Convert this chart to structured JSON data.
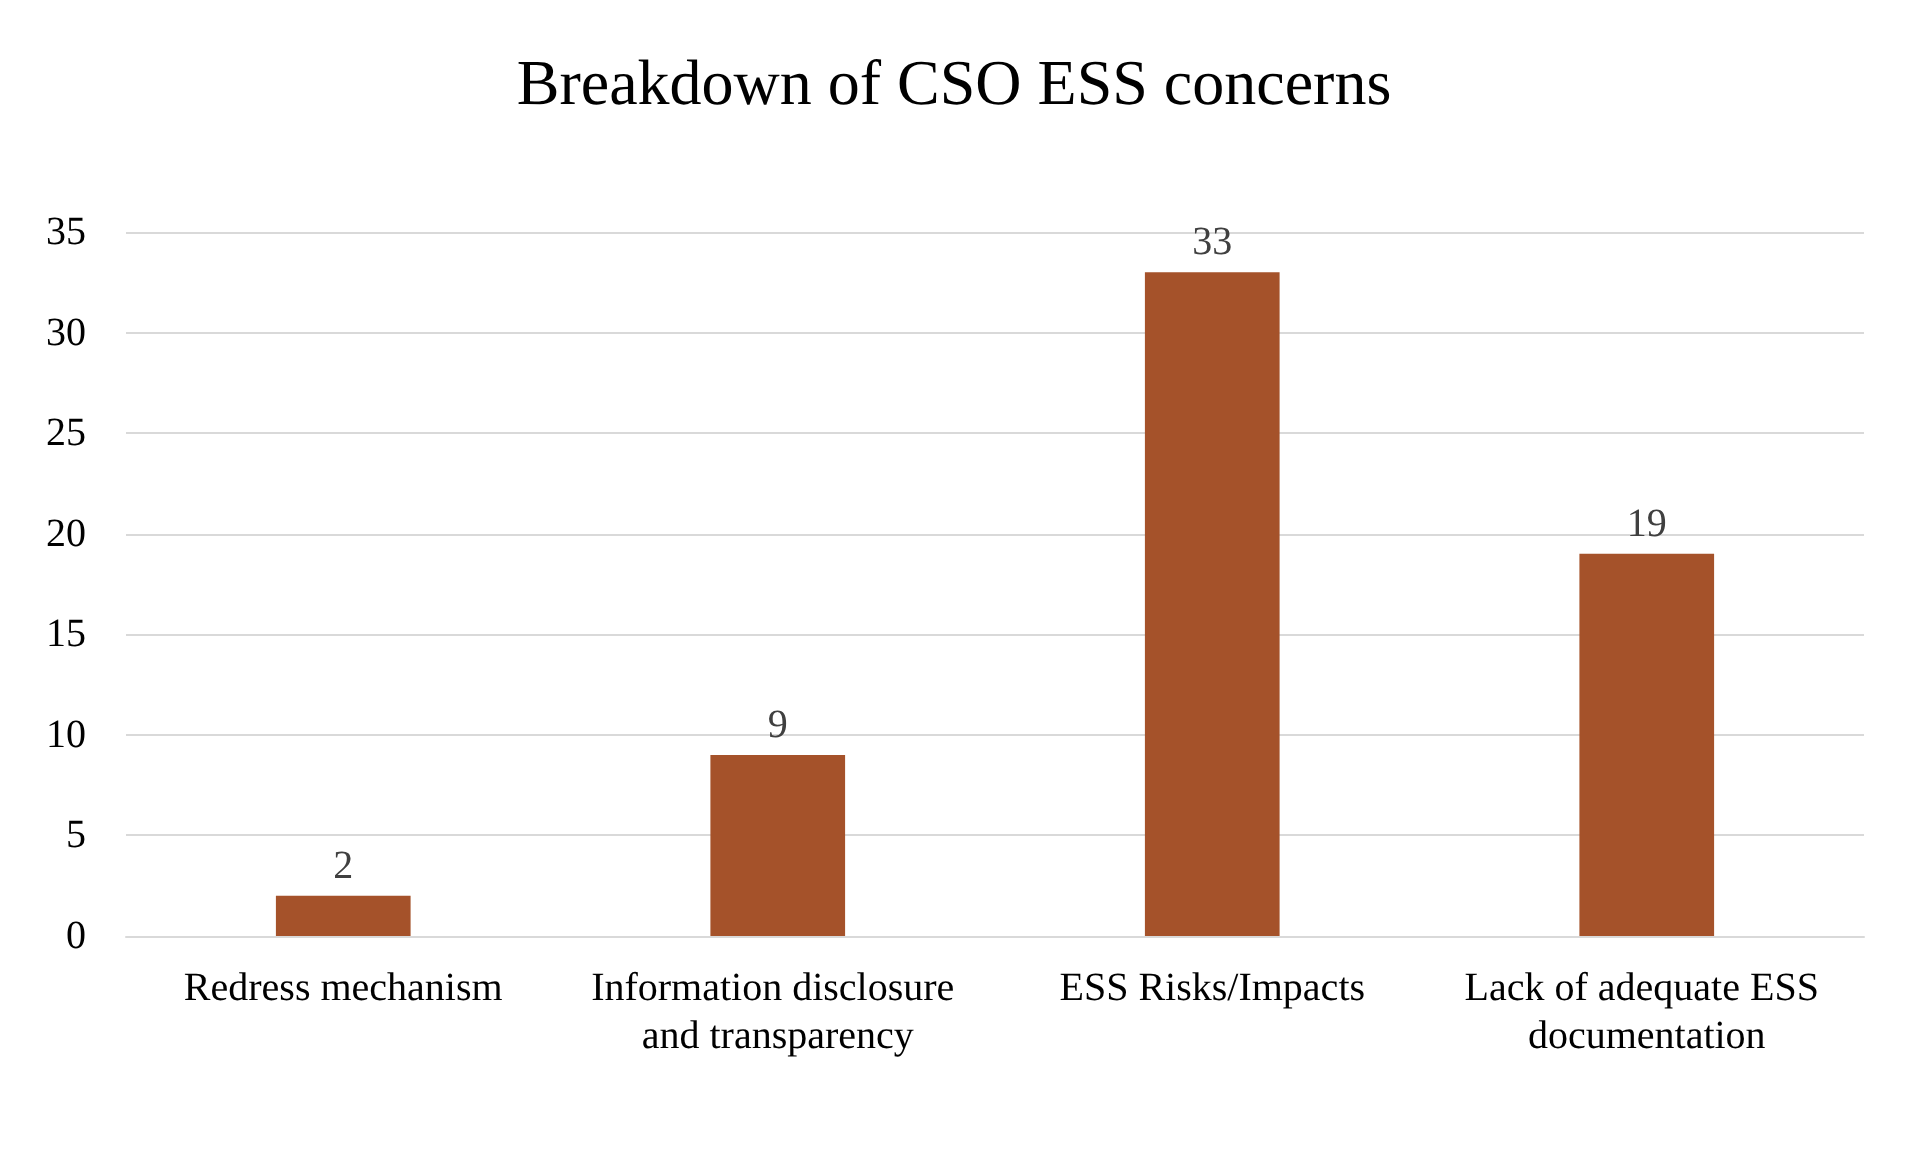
{
  "chart_data": {
    "type": "bar",
    "title": "Breakdown of CSO ESS concerns",
    "categories": [
      "Redress mechanism",
      "Information disclosure and transparency",
      "ESS Risks/Impacts",
      "Lack of adequate ESS documentation"
    ],
    "values": [
      2,
      9,
      33,
      19
    ],
    "color": "#a5522a",
    "ylim": [
      0,
      35
    ],
    "yticks": [
      0,
      5,
      10,
      15,
      20,
      25,
      30,
      35
    ],
    "grid": "y",
    "data_labels": true
  }
}
